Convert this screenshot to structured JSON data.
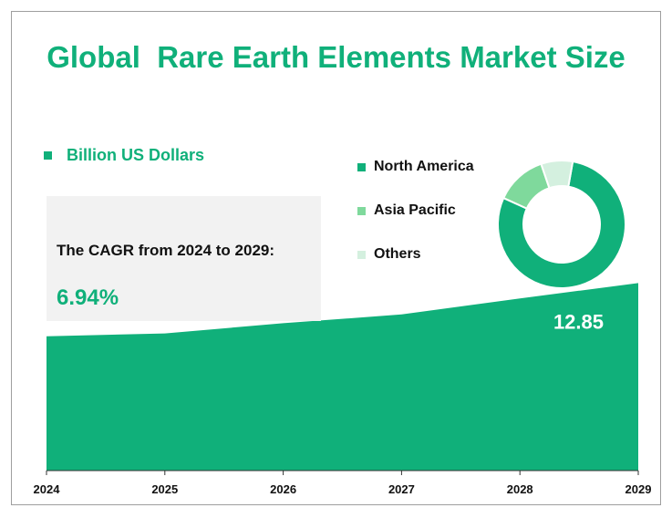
{
  "title": "Global  Rare Earth Elements Market Size",
  "unit_legend": {
    "label": "Billion US Dollars",
    "color": "#10b07a"
  },
  "cagr": {
    "label": "The CAGR from 2024 to 2029:",
    "value": "6.94%"
  },
  "region_legend": [
    {
      "label": "North America",
      "color": "#10b07a"
    },
    {
      "label": "Asia Pacific",
      "color": "#7fd99c"
    },
    {
      "label": "Others",
      "color": "#d4f0df"
    }
  ],
  "chart_data": [
    {
      "type": "area",
      "x": [
        "2024",
        "2025",
        "2026",
        "2027",
        "2028",
        "2029"
      ],
      "values": [
        9.2,
        9.4,
        10.1,
        10.7,
        11.8,
        12.85
      ],
      "ylim": [
        0,
        13.5
      ],
      "color": "#10b07a",
      "annotations": [
        {
          "x": "2029",
          "text": "12.85"
        }
      ]
    },
    {
      "type": "pie",
      "labels": [
        "North America",
        "Asia Pacific",
        "Others"
      ],
      "values": [
        79,
        13,
        8
      ],
      "colors": [
        "#10b07a",
        "#7fd99c",
        "#d4f0df"
      ]
    }
  ]
}
